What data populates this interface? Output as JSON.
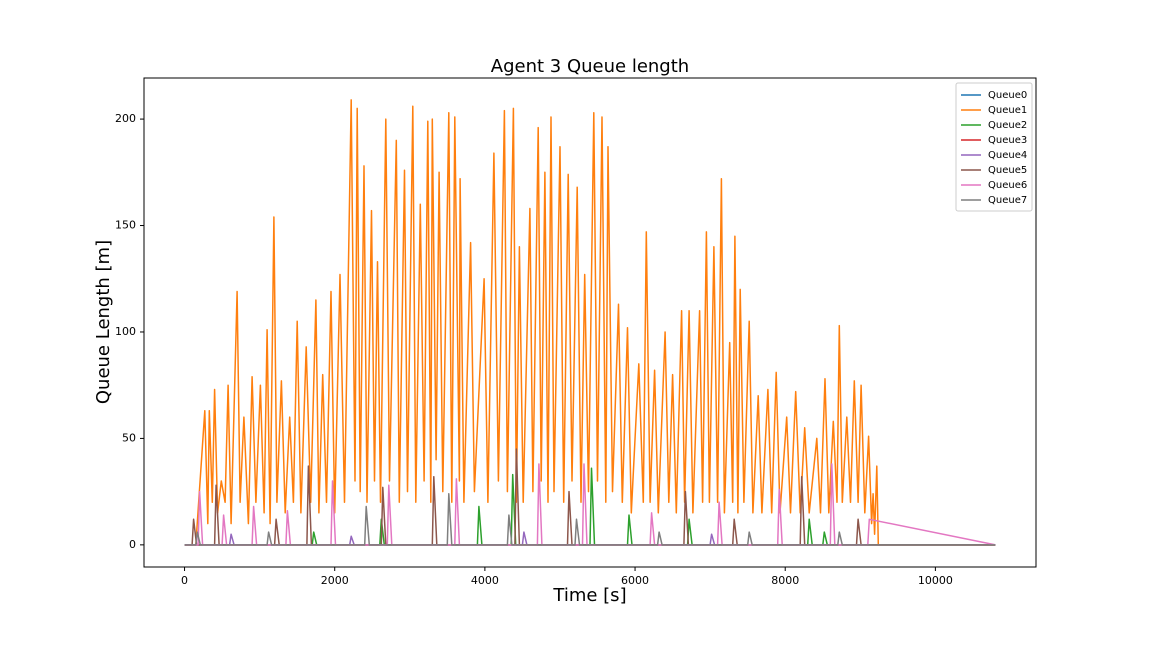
{
  "chart_data": {
    "type": "line",
    "title": "Agent 3 Queue length",
    "x_label": "Time [s]",
    "y_label": "Queue Length [m]",
    "xlim": [
      -540,
      11340
    ],
    "ylim": [
      -10.4,
      219.3
    ],
    "xticks": [
      0,
      2000,
      4000,
      6000,
      8000,
      10000
    ],
    "yticks": [
      0,
      50,
      100,
      150,
      200
    ],
    "legend": "upper right",
    "series": [
      {
        "name": "Queue0",
        "color": "#1f77b4",
        "x": [
          0,
          10800
        ],
        "values": [
          0,
          0
        ]
      },
      {
        "name": "Queue1",
        "color": "#ff7f0e",
        "x": [
          0,
          150,
          270,
          310,
          330,
          370,
          400,
          440,
          490,
          540,
          580,
          620,
          700,
          740,
          790,
          850,
          900,
          950,
          1010,
          1060,
          1100,
          1140,
          1190,
          1230,
          1290,
          1340,
          1400,
          1450,
          1500,
          1550,
          1620,
          1680,
          1750,
          1790,
          1840,
          1890,
          1950,
          2000,
          2070,
          2130,
          2220,
          2270,
          2300,
          2340,
          2390,
          2430,
          2490,
          2530,
          2570,
          2610,
          2680,
          2730,
          2820,
          2860,
          2930,
          2970,
          3040,
          3080,
          3140,
          3190,
          3240,
          3280,
          3300,
          3350,
          3390,
          3440,
          3520,
          3560,
          3600,
          3660,
          3670,
          3720,
          3810,
          3860,
          3990,
          4040,
          4120,
          4180,
          4260,
          4300,
          4380,
          4420,
          4460,
          4510,
          4600,
          4640,
          4710,
          4750,
          4800,
          4840,
          4880,
          4920,
          5000,
          5050,
          5110,
          5160,
          5230,
          5280,
          5330,
          5380,
          5450,
          5500,
          5560,
          5610,
          5640,
          5700,
          5780,
          5830,
          5900,
          5950,
          6050,
          6110,
          6150,
          6200,
          6260,
          6310,
          6400,
          6450,
          6500,
          6550,
          6620,
          6660,
          6720,
          6770,
          6860,
          6900,
          6950,
          6990,
          7050,
          7100,
          7150,
          7190,
          7260,
          7300,
          7330,
          7370,
          7400,
          7450,
          7520,
          7570,
          7640,
          7690,
          7770,
          7820,
          7880,
          7930,
          8020,
          8070,
          8140,
          8200,
          8260,
          8320,
          8420,
          8470,
          8530,
          8580,
          8640,
          8690,
          8720,
          8760,
          8820,
          8870,
          8920,
          8970,
          9010,
          9060,
          9110,
          9150,
          9170,
          9190,
          9220,
          9240,
          10800
        ],
        "values": [
          0,
          0,
          63,
          10,
          63,
          20,
          73,
          15,
          30,
          20,
          75,
          10,
          119,
          20,
          60,
          10,
          79,
          20,
          75,
          15,
          101,
          10,
          154,
          20,
          77,
          15,
          60,
          20,
          105,
          15,
          93,
          20,
          115,
          15,
          80,
          20,
          119,
          15,
          127,
          20,
          209,
          30,
          205,
          25,
          178,
          20,
          157,
          30,
          133,
          20,
          200,
          30,
          190,
          20,
          176,
          25,
          206,
          20,
          160,
          30,
          199,
          20,
          200,
          40,
          175,
          25,
          203,
          20,
          201,
          30,
          172,
          20,
          142,
          25,
          125,
          20,
          184,
          30,
          204,
          25,
          205,
          20,
          140,
          20,
          158,
          25,
          196,
          30,
          175,
          20,
          201,
          25,
          187,
          20,
          174,
          30,
          168,
          20,
          127,
          25,
          203,
          30,
          201,
          20,
          187,
          25,
          113,
          20,
          102,
          15,
          85,
          20,
          147,
          20,
          82,
          15,
          100,
          20,
          80,
          15,
          110,
          20,
          110,
          15,
          110,
          20,
          147,
          20,
          140,
          20,
          172,
          15,
          95,
          20,
          145,
          15,
          120,
          20,
          105,
          15,
          70,
          15,
          73,
          15,
          81,
          15,
          60,
          15,
          72,
          15,
          55,
          15,
          50,
          15,
          78,
          15,
          58,
          20,
          103,
          20,
          60,
          20,
          77,
          20,
          75,
          15,
          51,
          10,
          24,
          5,
          37,
          0,
          0
        ]
      },
      {
        "name": "Queue2",
        "color": "#2ca02c",
        "x": [
          0,
          1700,
          1720,
          1760,
          2600,
          2620,
          2660,
          3900,
          3920,
          3960,
          4350,
          4370,
          4410,
          5400,
          5420,
          5460,
          5900,
          5920,
          5960,
          6700,
          6720,
          6760,
          8300,
          8320,
          8360,
          8500,
          8520,
          8560,
          10800
        ],
        "values": [
          0,
          0,
          6,
          0,
          0,
          12,
          0,
          0,
          18,
          0,
          0,
          33,
          0,
          0,
          36,
          0,
          0,
          14,
          0,
          0,
          12,
          0,
          0,
          12,
          0,
          0,
          6,
          0,
          0
        ]
      },
      {
        "name": "Queue3",
        "color": "#d62728",
        "x": [
          0,
          10800
        ],
        "values": [
          0,
          0
        ]
      },
      {
        "name": "Queue4",
        "color": "#9467bd",
        "x": [
          0,
          600,
          620,
          660,
          2200,
          2220,
          2260,
          4500,
          4520,
          4560,
          7000,
          7020,
          7060,
          10800
        ],
        "values": [
          0,
          0,
          5,
          0,
          0,
          4,
          0,
          0,
          6,
          0,
          0,
          5,
          0,
          0
        ]
      },
      {
        "name": "Queue5",
        "color": "#8c564b",
        "x": [
          0,
          100,
          120,
          160,
          400,
          420,
          460,
          1200,
          1220,
          1260,
          1630,
          1650,
          1690,
          2620,
          2640,
          2680,
          3300,
          3320,
          3360,
          4400,
          4420,
          4460,
          5100,
          5120,
          5160,
          6650,
          6670,
          6710,
          7300,
          7320,
          7360,
          8200,
          8220,
          8260,
          8950,
          8970,
          9010,
          10800
        ],
        "values": [
          0,
          0,
          12,
          0,
          0,
          28,
          0,
          0,
          12,
          0,
          0,
          37,
          0,
          0,
          27,
          0,
          0,
          32,
          0,
          0,
          45,
          0,
          0,
          25,
          0,
          0,
          25,
          0,
          0,
          12,
          0,
          0,
          32,
          0,
          0,
          12,
          0,
          0
        ]
      },
      {
        "name": "Queue6",
        "color": "#e377c2",
        "x": [
          0,
          180,
          200,
          240,
          500,
          520,
          560,
          900,
          920,
          960,
          1350,
          1370,
          1410,
          1950,
          1970,
          2010,
          2700,
          2720,
          2760,
          3600,
          3620,
          3660,
          4700,
          4720,
          4760,
          5300,
          5320,
          5360,
          6200,
          6220,
          6260,
          7100,
          7120,
          7160,
          7900,
          7920,
          7960,
          8600,
          8620,
          8660,
          9100,
          9120,
          10800
        ],
        "values": [
          0,
          0,
          25,
          0,
          0,
          14,
          0,
          0,
          18,
          0,
          0,
          16,
          0,
          0,
          30,
          0,
          0,
          28,
          0,
          0,
          31,
          0,
          0,
          38,
          0,
          0,
          38,
          0,
          0,
          15,
          0,
          0,
          20,
          0,
          0,
          26,
          0,
          0,
          38,
          0,
          0,
          12,
          0
        ]
      },
      {
        "name": "Queue7",
        "color": "#7f7f7f",
        "x": [
          0,
          150,
          170,
          210,
          1100,
          1120,
          1160,
          2400,
          2420,
          2460,
          3500,
          3520,
          3560,
          4300,
          4320,
          4360,
          5200,
          5220,
          5260,
          6300,
          6320,
          6360,
          7500,
          7520,
          7560,
          8700,
          8720,
          8760,
          10800
        ],
        "values": [
          0,
          0,
          6,
          0,
          0,
          6,
          0,
          0,
          18,
          0,
          0,
          24,
          0,
          0,
          14,
          0,
          0,
          12,
          0,
          0,
          6,
          0,
          0,
          6,
          0,
          0,
          6,
          0,
          0
        ]
      }
    ]
  }
}
